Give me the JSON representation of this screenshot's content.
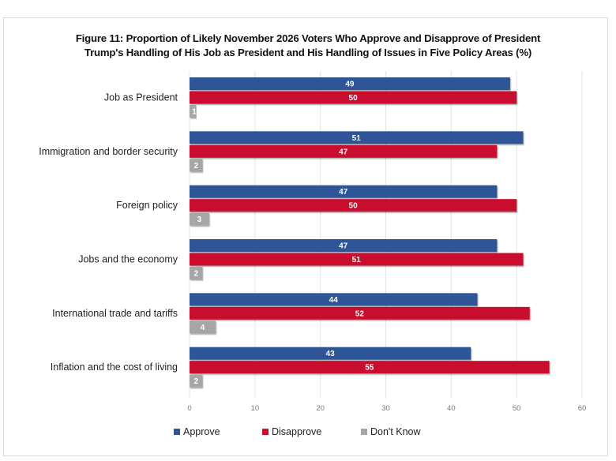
{
  "chart_data": {
    "type": "bar",
    "orientation": "horizontal",
    "title_lines": [
      "Figure 11: Proportion of Likely November 2026 Voters Who Approve and Disapprove of President",
      "Trump's Handling of His Job as President and His Handling of Issues in Five Policy Areas (%)"
    ],
    "categories": [
      "Job as President",
      "Immigration and border security",
      "Foreign policy",
      "Jobs and the economy",
      "International trade and tariffs",
      "Inflation and the cost of living"
    ],
    "series": [
      {
        "name": "Approve",
        "color": "#2f5597",
        "values": [
          49,
          51,
          47,
          47,
          44,
          43
        ]
      },
      {
        "name": "Disapprove",
        "color": "#c8102e",
        "values": [
          50,
          47,
          50,
          51,
          52,
          55
        ]
      },
      {
        "name": "Don't Know",
        "color": "#a6a6a6",
        "values": [
          1,
          2,
          3,
          2,
          4,
          2
        ]
      }
    ],
    "xlim": [
      0,
      60
    ],
    "xticks": [
      0,
      10,
      20,
      30,
      40,
      50,
      60
    ],
    "xlabel": "",
    "ylabel": "",
    "grid": true,
    "data_labels": true,
    "legend_position": "bottom"
  }
}
